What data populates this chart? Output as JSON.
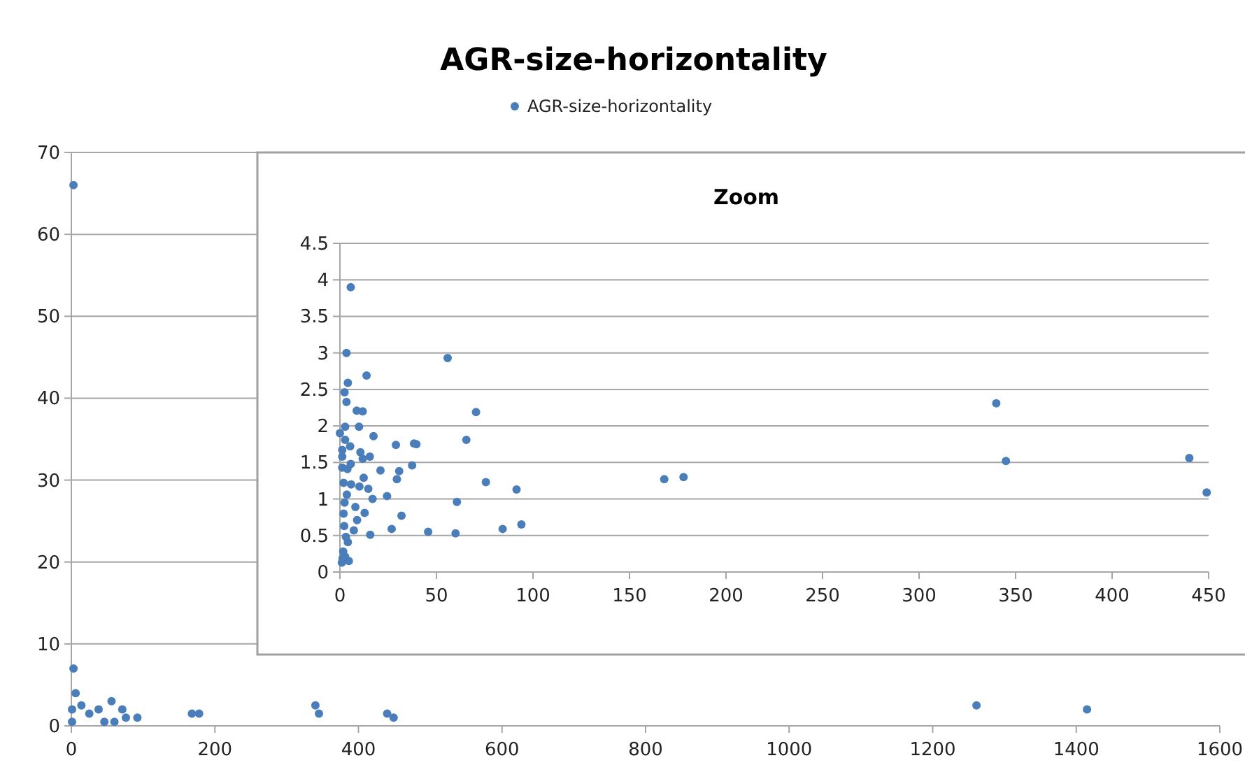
{
  "chart_data": [
    {
      "type": "scatter",
      "title": "AGR-size-horizontality",
      "legend": "top",
      "grid": "y",
      "marker": "circle",
      "xlim": [
        0,
        1600
      ],
      "xticks": [
        0,
        200,
        400,
        600,
        800,
        1000,
        1200,
        1400,
        1600
      ],
      "ylim": [
        0,
        70
      ],
      "yticks": [
        0,
        10,
        20,
        30,
        40,
        50,
        60,
        70
      ],
      "series": [
        {
          "name": "AGR-size-horizontality",
          "color": "#4a7ebb",
          "x": [
            3,
            3,
            6,
            1,
            1,
            14,
            25,
            38,
            46,
            56,
            60,
            71,
            76,
            92,
            168,
            178,
            340,
            345,
            440,
            449,
            1261,
            1415
          ],
          "values": [
            66,
            7,
            4,
            2,
            0.5,
            2.5,
            1.5,
            2,
            0.5,
            3,
            0.5,
            2,
            1,
            1,
            1.5,
            1.5,
            2.5,
            1.5,
            1.5,
            1,
            2.5,
            2
          ]
        }
      ]
    },
    {
      "type": "scatter",
      "title": "Zoom",
      "grid": "y",
      "marker": "circle",
      "xlim": [
        0,
        450
      ],
      "xticks": [
        0,
        50,
        100,
        150,
        200,
        250,
        300,
        350,
        400,
        450
      ],
      "ylim": [
        0,
        4.5
      ],
      "yticks": [
        0,
        0.5,
        1,
        1.5,
        2,
        2.5,
        3,
        3.5,
        4,
        4.5
      ],
      "series": [
        {
          "color": "#4a7ebb",
          "x": [
            5.6,
            3.4,
            55.8,
            13.8,
            4.1,
            2.4,
            3.4,
            8.7,
            11.8,
            70.5,
            2.7,
            9.9,
            0,
            17.4,
            2.7,
            65.5,
            5.3,
            29,
            38.4,
            39.6,
            1.2,
            10.6,
            15.5,
            11.8,
            1.2,
            37.4,
            5.6,
            1.2,
            3.9,
            21,
            30.7,
            12.3,
            29.5,
            75.6,
            1.9,
            5.8,
            10.1,
            14.7,
            91.5,
            3.6,
            16.9,
            24.4,
            60.6,
            2.4,
            8,
            1.9,
            8.9,
            31.9,
            12.8,
            2.2,
            94,
            26.8,
            84.3,
            7.2,
            45.7,
            59.9,
            15.7,
            3.1,
            4.1,
            1.7,
            1.4,
            1,
            4.6,
            2.7,
            168,
            178,
            340,
            345,
            440,
            449
          ],
          "values": [
            3.9,
            3.0,
            2.93,
            2.69,
            2.59,
            2.46,
            2.33,
            2.21,
            2.2,
            2.19,
            1.99,
            1.99,
            1.9,
            1.86,
            1.81,
            1.81,
            1.72,
            1.74,
            1.76,
            1.75,
            1.67,
            1.64,
            1.58,
            1.55,
            1.58,
            1.46,
            1.48,
            1.43,
            1.41,
            1.39,
            1.38,
            1.29,
            1.27,
            1.23,
            1.22,
            1.2,
            1.17,
            1.14,
            1.13,
            1.06,
            1.0,
            1.04,
            0.96,
            0.95,
            0.89,
            0.8,
            0.71,
            0.77,
            0.81,
            0.63,
            0.65,
            0.59,
            0.59,
            0.57,
            0.55,
            0.53,
            0.51,
            0.48,
            0.41,
            0.28,
            0.19,
            0.13,
            0.15,
            0.21,
            1.27,
            1.3,
            2.31,
            1.52,
            1.56,
            1.09
          ]
        }
      ]
    }
  ]
}
